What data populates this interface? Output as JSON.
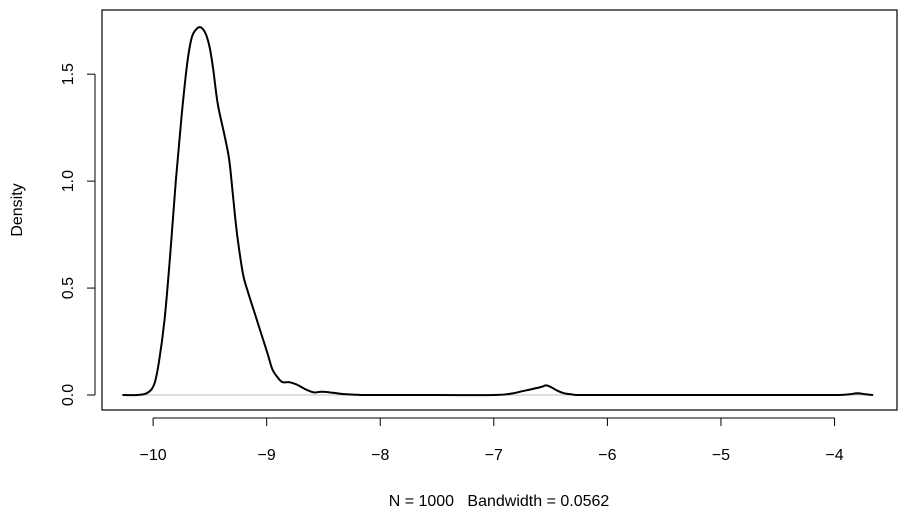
{
  "chart_data": {
    "type": "line",
    "title": "",
    "xlabel": "N = 1000   Bandwidth = 0.0562",
    "ylabel": "Density",
    "xlim": [
      -10.45,
      -3.45
    ],
    "ylim": [
      -0.07,
      1.8
    ],
    "x_ticks": [
      -10,
      -9,
      -8,
      -7,
      -6,
      -5,
      -4
    ],
    "x_tick_labels": [
      "−10",
      "−9",
      "−8",
      "−7",
      "−6",
      "−5",
      "−4"
    ],
    "y_ticks": [
      0.0,
      0.5,
      1.0,
      1.5
    ],
    "y_tick_labels": [
      "0.0",
      "0.5",
      "1.0",
      "1.5"
    ],
    "baseline": 0,
    "grid": false,
    "legend": "none",
    "colors": {
      "line": "#000000",
      "baseline": "#bebebe",
      "box": "#000000"
    },
    "series": [
      {
        "x": [
          -10.27,
          -10.14,
          -10.05,
          -9.99,
          -9.95,
          -9.9,
          -9.85,
          -9.8,
          -9.75,
          -9.7,
          -9.66,
          -9.62,
          -9.59,
          -9.56,
          -9.53,
          -9.5,
          -9.47,
          -9.43,
          -9.37,
          -9.33,
          -9.3,
          -9.26,
          -9.21,
          -9.17,
          -9.11,
          -9.05,
          -8.99,
          -8.95,
          -8.9,
          -8.86,
          -8.8,
          -8.74,
          -8.67,
          -8.63,
          -8.58,
          -8.52,
          -8.44,
          -8.35,
          -8.28,
          -8.2,
          -8.1,
          -7.5,
          -7.0,
          -6.84,
          -6.75,
          -6.66,
          -6.58,
          -6.54,
          -6.49,
          -6.44,
          -6.38,
          -6.31,
          -6.21,
          -5.5,
          -5.0,
          -4.5,
          -4.0,
          -3.88,
          -3.8,
          -3.73,
          -3.66
        ],
        "y": [
          0.0,
          0.0,
          0.01,
          0.05,
          0.15,
          0.35,
          0.65,
          1.0,
          1.3,
          1.55,
          1.67,
          1.71,
          1.72,
          1.71,
          1.68,
          1.62,
          1.52,
          1.36,
          1.21,
          1.1,
          0.95,
          0.75,
          0.57,
          0.49,
          0.39,
          0.29,
          0.19,
          0.12,
          0.08,
          0.06,
          0.06,
          0.05,
          0.03,
          0.02,
          0.012,
          0.015,
          0.012,
          0.006,
          0.003,
          0.001,
          0.0,
          0.0,
          0.0,
          0.007,
          0.018,
          0.028,
          0.038,
          0.045,
          0.035,
          0.02,
          0.008,
          0.003,
          0.0,
          0.0,
          0.0,
          0.0,
          0.0,
          0.003,
          0.008,
          0.004,
          0.0
        ]
      }
    ]
  }
}
